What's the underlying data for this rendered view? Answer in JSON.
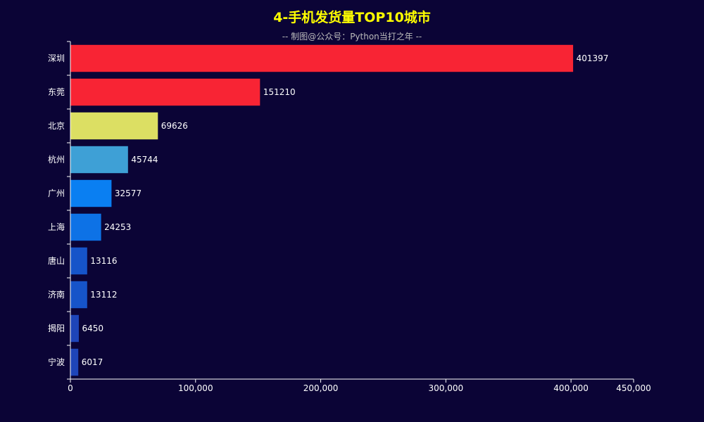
{
  "chart_data": {
    "type": "bar",
    "orientation": "horizontal",
    "title": "4-手机发货量TOP10城市",
    "subtitle": "-- 制图@公众号：Python当打之年 --",
    "categories": [
      "深圳",
      "东莞",
      "北京",
      "杭州",
      "广州",
      "上海",
      "唐山",
      "济南",
      "揭阳",
      "宁波"
    ],
    "values": [
      401397,
      151210,
      69626,
      45744,
      32577,
      24253,
      13116,
      13112,
      6450,
      6017
    ],
    "value_labels": [
      "401397",
      "151210",
      "69626",
      "45744",
      "32577",
      "24253",
      "13116",
      "13112",
      "6450",
      "6017"
    ],
    "bar_colors": [
      "#f82434",
      "#f82434",
      "#dcdf63",
      "#3ea0d6",
      "#0a7ff2",
      "#0d72e6",
      "#1654c9",
      "#1654c9",
      "#1e45b8",
      "#1e45b8"
    ],
    "xticks": [
      0,
      100000,
      200000,
      300000,
      400000,
      450000
    ],
    "xtick_labels": [
      "0",
      "100,000",
      "200,000",
      "300,000",
      "400,000",
      "450,000"
    ],
    "xlim": [
      0,
      450000
    ],
    "xlabel": "",
    "ylabel": "",
    "grid": false,
    "legend": "none",
    "colors": {
      "background": "#0b0436",
      "title": "#ffff00",
      "subtitle": "#bbbbbb",
      "text": "#ffffff",
      "axis": "#ffffff"
    }
  }
}
